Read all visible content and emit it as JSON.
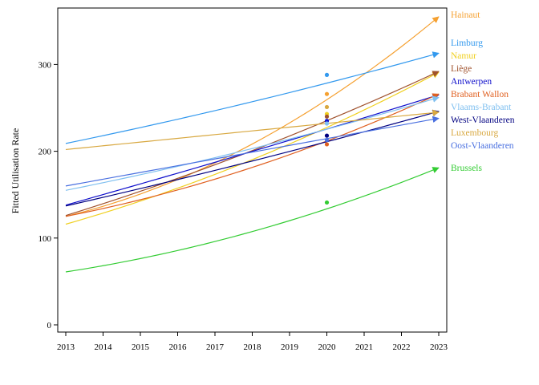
{
  "chart_data": {
    "type": "line",
    "title": "",
    "xlabel": "",
    "ylabel": "Fitted Utilisation Rate",
    "xlim": [
      2013,
      2023
    ],
    "ylim": [
      0,
      365
    ],
    "x_ticks": [
      "2013",
      "2014",
      "2015",
      "2016",
      "2017",
      "2018",
      "2019",
      "2020",
      "2021",
      "2022",
      "2023"
    ],
    "y_ticks": [
      "0",
      "100",
      "200",
      "300"
    ],
    "grid": false,
    "legend_placement": "right, labels at line ends",
    "series": [
      {
        "name": "Hainaut",
        "color": "#f5a030",
        "start": 125,
        "end": 355,
        "curve": 0.55,
        "point": 266
      },
      {
        "name": "Limburg",
        "color": "#3399ee",
        "start": 209,
        "end": 313,
        "curve": 0.15,
        "point": 288
      },
      {
        "name": "Namur",
        "color": "#f0d020",
        "start": 116,
        "end": 291,
        "curve": 0.3,
        "point": 243
      },
      {
        "name": "Liège",
        "color": "#a0522d",
        "start": 126,
        "end": 292,
        "curve": 0.2,
        "point": 240
      },
      {
        "name": "Antwerpen",
        "color": "#1010cc",
        "start": 138,
        "end": 265,
        "curve": 0.05,
        "point": 235
      },
      {
        "name": "Brabant Wallon",
        "color": "#e06020",
        "start": 125,
        "end": 266,
        "curve": 0.4,
        "point": 208
      },
      {
        "name": "Vlaams-Brabant",
        "color": "#80c0f0",
        "start": 155,
        "end": 262,
        "curve": 0.2,
        "point": 232
      },
      {
        "name": "West-Vlaanderen",
        "color": "#000080",
        "start": 137,
        "end": 246,
        "curve": 0.1,
        "point": 218
      },
      {
        "name": "Luxembourg",
        "color": "#d8a840",
        "start": 202,
        "end": 245,
        "curve": 0.0,
        "point": 251
      },
      {
        "name": "Oost-Vlaanderen",
        "color": "#4a70e0",
        "start": 160,
        "end": 238,
        "curve": 0.0,
        "point": 213
      },
      {
        "name": "Brussels",
        "color": "#33cc33",
        "start": 61,
        "end": 181,
        "curve": 0.45,
        "point": 141
      }
    ],
    "point_year": 2020
  }
}
